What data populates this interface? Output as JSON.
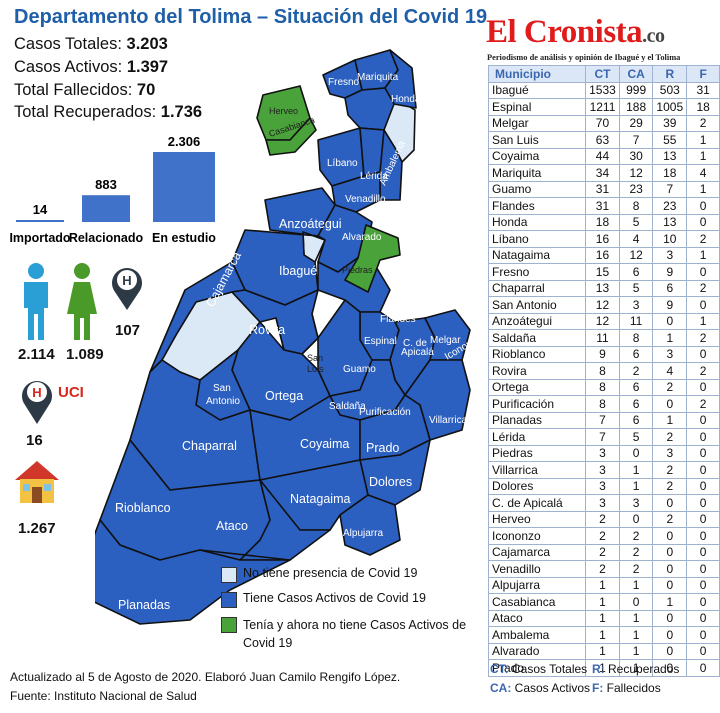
{
  "title": "Departamento del Tolima – Situación del Covid 19",
  "stats": [
    {
      "label": "Casos Totales:",
      "value": "3.203"
    },
    {
      "label": "Casos Activos:",
      "value": "1.397"
    },
    {
      "label": "Total Fallecidos:",
      "value": "70"
    },
    {
      "label": "Total Recuperados:",
      "value": "1.736"
    }
  ],
  "chart_data": {
    "type": "bar",
    "categories": [
      "Importado",
      "Relacionado",
      "En estudio"
    ],
    "values": [
      14,
      883,
      2306
    ],
    "value_labels": [
      "14",
      "883",
      "2.306"
    ]
  },
  "demographics": {
    "men": "2.114",
    "women": "1.089",
    "hospital": "107",
    "uci_label": "UCI",
    "uci": "16",
    "home": "1.267"
  },
  "brand": {
    "name": "El Cronista",
    "suffix": ".co",
    "tagline": "Periodismo de análisis y opinión de Ibagué y el Tolima"
  },
  "table": {
    "headers": [
      "Municipio",
      "CT",
      "CA",
      "R",
      "F"
    ],
    "rows": [
      [
        "Ibagué",
        "1533",
        "999",
        "503",
        "31"
      ],
      [
        "Espinal",
        "1211",
        "188",
        "1005",
        "18"
      ],
      [
        "Melgar",
        "70",
        "29",
        "39",
        "2"
      ],
      [
        "San Luis",
        "63",
        "7",
        "55",
        "1"
      ],
      [
        "Coyaima",
        "44",
        "30",
        "13",
        "1"
      ],
      [
        "Mariquita",
        "34",
        "12",
        "18",
        "4"
      ],
      [
        "Guamo",
        "31",
        "23",
        "7",
        "1"
      ],
      [
        "Flandes",
        "31",
        "8",
        "23",
        "0"
      ],
      [
        "Honda",
        "18",
        "5",
        "13",
        "0"
      ],
      [
        "Líbano",
        "16",
        "4",
        "10",
        "2"
      ],
      [
        "Natagaima",
        "16",
        "12",
        "3",
        "1"
      ],
      [
        "Fresno",
        "15",
        "6",
        "9",
        "0"
      ],
      [
        "Chaparral",
        "13",
        "5",
        "6",
        "2"
      ],
      [
        "San Antonio",
        "12",
        "3",
        "9",
        "0"
      ],
      [
        "Anzoátegui",
        "12",
        "11",
        "0",
        "1"
      ],
      [
        "Saldaña",
        "11",
        "8",
        "1",
        "2"
      ],
      [
        "Rioblanco",
        "9",
        "6",
        "3",
        "0"
      ],
      [
        "Rovira",
        "8",
        "2",
        "4",
        "2"
      ],
      [
        "Ortega",
        "8",
        "6",
        "2",
        "0"
      ],
      [
        "Purificación",
        "8",
        "6",
        "0",
        "2"
      ],
      [
        "Planadas",
        "7",
        "6",
        "1",
        "0"
      ],
      [
        "Lérida",
        "7",
        "5",
        "2",
        "0"
      ],
      [
        "Piedras",
        "3",
        "0",
        "3",
        "0"
      ],
      [
        "Villarrica",
        "3",
        "1",
        "2",
        "0"
      ],
      [
        "Dolores",
        "3",
        "1",
        "2",
        "0"
      ],
      [
        "C. de Apicalá",
        "3",
        "3",
        "0",
        "0"
      ],
      [
        "Herveo",
        "2",
        "0",
        "2",
        "0"
      ],
      [
        "Icononzo",
        "2",
        "2",
        "0",
        "0"
      ],
      [
        "Cajamarca",
        "2",
        "2",
        "0",
        "0"
      ],
      [
        "Venadillo",
        "2",
        "2",
        "0",
        "0"
      ],
      [
        "Alpujarra",
        "1",
        "1",
        "0",
        "0"
      ],
      [
        "Casabianca",
        "1",
        "0",
        "1",
        "0"
      ],
      [
        "Ataco",
        "1",
        "1",
        "0",
        "0"
      ],
      [
        "Ambalema",
        "1",
        "1",
        "0",
        "0"
      ],
      [
        "Alvarado",
        "1",
        "1",
        "0",
        "0"
      ],
      [
        "Prado",
        "1",
        "1",
        "0",
        "0"
      ]
    ]
  },
  "key": [
    {
      "abbr": "CT:",
      "text": "Casos Totales"
    },
    {
      "abbr": "R:",
      "text": "Recuperados"
    },
    {
      "abbr": "CA:",
      "text": "Casos Activos"
    },
    {
      "abbr": "F:",
      "text": "Fallecidos"
    }
  ],
  "legend": [
    {
      "color": "#dbe9f6",
      "text": "No tiene presencia de Covid 19"
    },
    {
      "color": "#2b5fc0",
      "text": "Tiene Casos Activos de Covid 19"
    },
    {
      "color": "#4aa23a",
      "text": "Tenía y ahora no tiene Casos Activos de Covid 19"
    }
  ],
  "map_labels": {
    "fresno": "Fresno",
    "mariquita": "Mariquita",
    "honda": "Honda",
    "herveo": "Herveo",
    "casabianca": "Casabianca",
    "libano": "Líbano",
    "lerida": "Lérida",
    "ambalema": "Ambalema",
    "venadillo": "Venadillo",
    "anzoategui": "Anzoátegui",
    "alvarado": "Alvarado",
    "ibague": "Ibagué",
    "cajamarca": "Cajamarca",
    "piedras": "Piedras",
    "rovira": "Rovira",
    "flandes": "Flandes",
    "espinal": "Espinal",
    "c_de_apicala_1": "C. de",
    "c_de_apicala_2": "Apicalá",
    "melgar": "Melgar",
    "icononzo": "Icononzo",
    "san_luis_1": "San",
    "san_luis_2": "Luis",
    "guamo": "Guamo",
    "san_antonio_1": "San",
    "san_antonio_2": "Antonio",
    "ortega": "Ortega",
    "saldana": "Saldaña",
    "purificacion": "Purificación",
    "villarrica": "Villarrica",
    "chaparral": "Chaparral",
    "coyaima": "Coyaima",
    "prado": "Prado",
    "dolores": "Dolores",
    "natagaima": "Natagaima",
    "rioblanco": "Rioblanco",
    "ataco": "Ataco",
    "alpujarra": "Alpujarra",
    "planadas": "Planadas"
  },
  "footer": {
    "line1": "Actualizado al 5 de Agosto de 2020. Elaboró Juan Camilo Rengifo López.",
    "line2": "Fuente: Instituto Nacional de Salud"
  }
}
